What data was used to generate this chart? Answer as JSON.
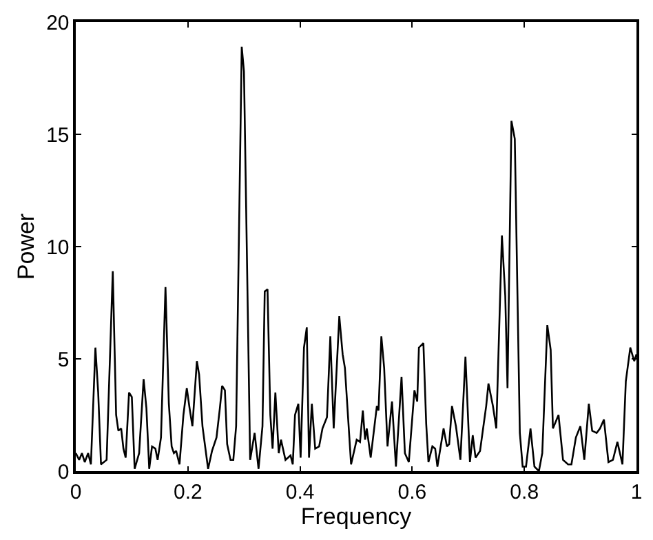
{
  "chart_data": {
    "type": "line",
    "xlabel": "Frequency",
    "ylabel": "Power",
    "xlim": [
      0,
      1
    ],
    "ylim": [
      0,
      20
    ],
    "xticks": [
      0,
      0.2,
      0.4,
      0.6,
      0.8,
      1
    ],
    "yticks": [
      0,
      5,
      10,
      15,
      20
    ],
    "marker": "none",
    "line_style": "solid",
    "series": [
      {
        "color": "#000000",
        "x": [
          0,
          0.006,
          0.011,
          0.016,
          0.022,
          0.027,
          0.035,
          0.04,
          0.045,
          0.055,
          0.066,
          0.072,
          0.076,
          0.081,
          0.085,
          0.089,
          0.095,
          0.1,
          0.105,
          0.113,
          0.121,
          0.126,
          0.131,
          0.136,
          0.142,
          0.146,
          0.152,
          0.16,
          0.166,
          0.171,
          0.175,
          0.179,
          0.185,
          0.192,
          0.198,
          0.203,
          0.208,
          0.216,
          0.22,
          0.226,
          0.236,
          0.243,
          0.251,
          0.257,
          0.261,
          0.266,
          0.27,
          0.276,
          0.281,
          0.286,
          0.296,
          0.3,
          0.311,
          0.319,
          0.326,
          0.333,
          0.337,
          0.342,
          0.347,
          0.351,
          0.356,
          0.362,
          0.366,
          0.374,
          0.383,
          0.387,
          0.391,
          0.397,
          0.401,
          0.407,
          0.412,
          0.416,
          0.421,
          0.427,
          0.434,
          0.44,
          0.448,
          0.454,
          0.46,
          0.47,
          0.476,
          0.48,
          0.491,
          0.501,
          0.507,
          0.512,
          0.516,
          0.519,
          0.526,
          0.537,
          0.54,
          0.545,
          0.55,
          0.556,
          0.564,
          0.571,
          0.581,
          0.587,
          0.594,
          0.604,
          0.609,
          0.612,
          0.62,
          0.625,
          0.629,
          0.636,
          0.641,
          0.645,
          0.656,
          0.662,
          0.666,
          0.671,
          0.678,
          0.686,
          0.695,
          0.703,
          0.708,
          0.713,
          0.721,
          0.732,
          0.736,
          0.744,
          0.75,
          0.76,
          0.766,
          0.77,
          0.777,
          0.783,
          0.792,
          0.797,
          0.803,
          0.811,
          0.818,
          0.826,
          0.832,
          0.841,
          0.847,
          0.851,
          0.861,
          0.869,
          0.878,
          0.884,
          0.892,
          0.9,
          0.907,
          0.915,
          0.921,
          0.929,
          0.935,
          0.942,
          0.95,
          0.958,
          0.966,
          0.975,
          0.981,
          0.989,
          0.996,
          1.0
        ],
        "values": [
          0.8,
          0.5,
          0.8,
          0.4,
          0.8,
          0.3,
          5.5,
          3.5,
          0.3,
          0.5,
          8.9,
          2.5,
          1.8,
          1.9,
          1.0,
          0.6,
          3.5,
          3.3,
          0.1,
          0.8,
          4.1,
          2.8,
          0.1,
          1.1,
          1.0,
          0.5,
          1.5,
          8.2,
          3,
          1.1,
          0.8,
          0.9,
          0.3,
          2.5,
          3.7,
          2.8,
          2.0,
          4.9,
          4.3,
          2,
          0.1,
          0.9,
          1.5,
          2.8,
          3.8,
          3.6,
          1.2,
          0.5,
          0.5,
          2.0,
          18.9,
          17.8,
          0.5,
          1.7,
          0.1,
          2,
          8.0,
          8.1,
          2.5,
          1.0,
          3.5,
          0.8,
          1.4,
          0.5,
          0.7,
          0.3,
          2.5,
          3,
          0.6,
          5.5,
          6.4,
          0.6,
          3,
          1.0,
          1.1,
          1.9,
          2.4,
          6.0,
          1.9,
          6.9,
          5.2,
          4.6,
          0.3,
          1.4,
          1.3,
          2.7,
          1.4,
          1.9,
          0.6,
          2.9,
          2.7,
          6.0,
          4.6,
          1.1,
          3.1,
          0.2,
          4.2,
          0.8,
          0.4,
          3.6,
          3.1,
          5.5,
          5.7,
          2.1,
          0.4,
          1.1,
          1.0,
          0.2,
          1.9,
          1.1,
          1.2,
          2.9,
          2.0,
          0.5,
          5.1,
          0.4,
          1.6,
          0.6,
          0.9,
          2.9,
          3.9,
          2.9,
          1.9,
          10.5,
          7.8,
          3.7,
          15.6,
          14.8,
          1.7,
          0.2,
          0.2,
          1.9,
          0.2,
          0,
          0.8,
          6.5,
          5.4,
          1.9,
          2.5,
          0.5,
          0.3,
          0.3,
          1.5,
          2.0,
          0.5,
          3.0,
          1.8,
          1.7,
          1.9,
          2.3,
          0.4,
          0.5,
          1.3,
          0.3,
          4.0,
          5.5,
          4.9,
          5.2
        ]
      }
    ]
  }
}
